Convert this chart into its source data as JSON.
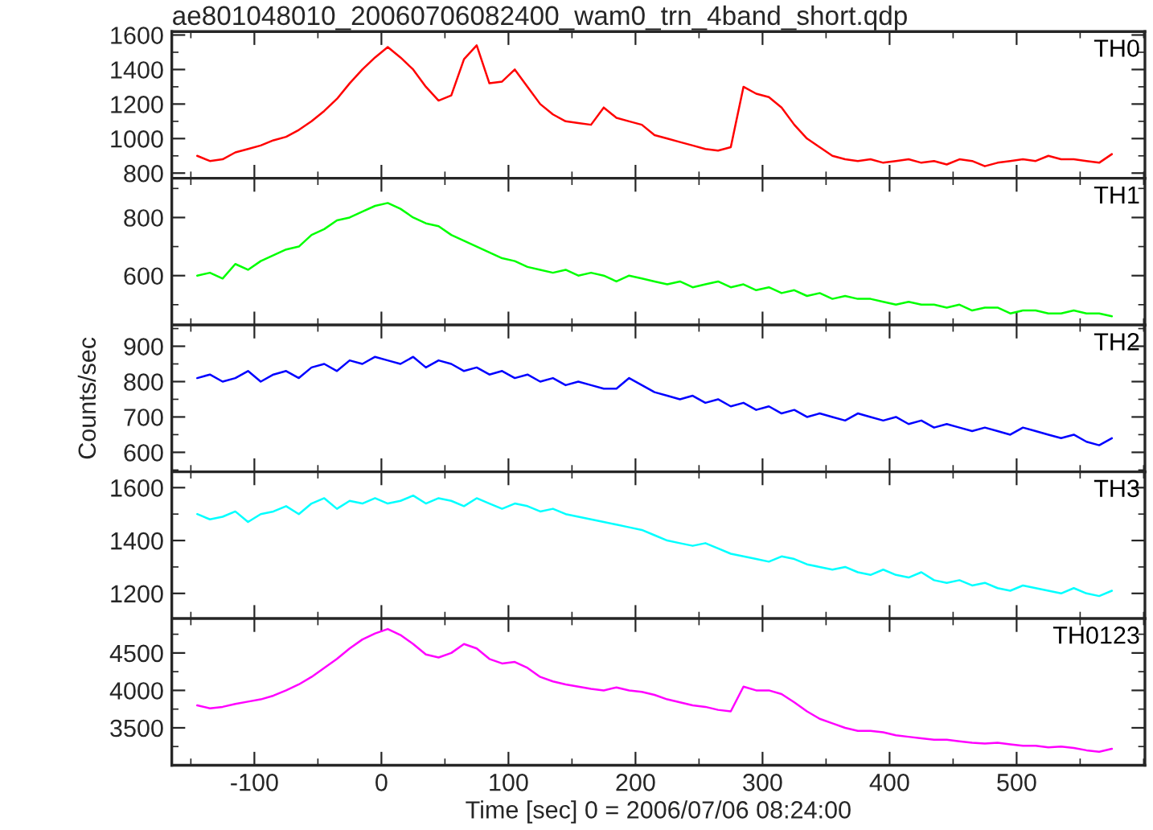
{
  "chart_data": [
    {
      "type": "line",
      "title": "ae801048010_20060706082400_wam0_trn_4band_short.qdp",
      "xlim": [
        -165,
        601
      ],
      "xticks": [
        -100,
        0,
        100,
        200,
        300,
        400,
        500
      ],
      "ylim": [
        770,
        1620
      ],
      "yticks": [
        800,
        1000,
        1200,
        1400,
        1600
      ],
      "tick_labels": "y",
      "grid": false,
      "legend": false,
      "series": [
        {
          "name": "TH0",
          "color": "#ff0000",
          "x": [
            -145,
            -135,
            -125,
            -115,
            -105,
            -95,
            -85,
            -75,
            -65,
            -55,
            -45,
            -35,
            -25,
            -15,
            -5,
            5,
            15,
            25,
            35,
            45,
            55,
            65,
            75,
            85,
            95,
            105,
            115,
            125,
            135,
            145,
            155,
            165,
            175,
            185,
            195,
            205,
            215,
            225,
            235,
            245,
            255,
            265,
            275,
            285,
            295,
            305,
            315,
            325,
            335,
            345,
            355,
            365,
            375,
            385,
            395,
            405,
            415,
            425,
            435,
            445,
            455,
            465,
            475,
            485,
            495,
            505,
            515,
            525,
            535,
            545,
            555,
            565,
            575
          ],
          "values": [
            900,
            870,
            880,
            920,
            940,
            960,
            990,
            1010,
            1050,
            1100,
            1160,
            1230,
            1320,
            1400,
            1470,
            1530,
            1470,
            1400,
            1300,
            1220,
            1250,
            1460,
            1540,
            1320,
            1330,
            1400,
            1300,
            1200,
            1140,
            1100,
            1090,
            1080,
            1180,
            1120,
            1100,
            1080,
            1020,
            1000,
            980,
            960,
            940,
            930,
            950,
            1300,
            1260,
            1240,
            1180,
            1080,
            1000,
            950,
            900,
            880,
            870,
            880,
            860,
            870,
            880,
            860,
            870,
            850,
            880,
            870,
            840,
            860,
            870,
            880,
            870,
            900,
            880,
            880,
            870,
            860,
            910
          ]
        }
      ]
    },
    {
      "type": "line",
      "xlim": [
        -165,
        601
      ],
      "xticks": [
        -100,
        0,
        100,
        200,
        300,
        400,
        500
      ],
      "ylim": [
        430,
        935
      ],
      "yticks": [
        600,
        800
      ],
      "tick_labels": "y",
      "grid": false,
      "legend": false,
      "series": [
        {
          "name": "TH1",
          "color": "#00ff00",
          "x": [
            -145,
            -135,
            -125,
            -115,
            -105,
            -95,
            -85,
            -75,
            -65,
            -55,
            -45,
            -35,
            -25,
            -15,
            -5,
            5,
            15,
            25,
            35,
            45,
            55,
            65,
            75,
            85,
            95,
            105,
            115,
            125,
            135,
            145,
            155,
            165,
            175,
            185,
            195,
            205,
            215,
            225,
            235,
            245,
            255,
            265,
            275,
            285,
            295,
            305,
            315,
            325,
            335,
            345,
            355,
            365,
            375,
            385,
            395,
            405,
            415,
            425,
            435,
            445,
            455,
            465,
            475,
            485,
            495,
            505,
            515,
            525,
            535,
            545,
            555,
            565,
            575
          ],
          "values": [
            600,
            610,
            590,
            640,
            620,
            650,
            670,
            690,
            700,
            740,
            760,
            790,
            800,
            820,
            840,
            850,
            830,
            800,
            780,
            770,
            740,
            720,
            700,
            680,
            660,
            650,
            630,
            620,
            610,
            620,
            600,
            610,
            600,
            580,
            600,
            590,
            580,
            570,
            580,
            560,
            570,
            580,
            560,
            570,
            550,
            560,
            540,
            550,
            530,
            540,
            520,
            530,
            520,
            520,
            510,
            500,
            510,
            500,
            500,
            490,
            500,
            480,
            490,
            490,
            470,
            480,
            480,
            470,
            470,
            480,
            470,
            470,
            460
          ]
        }
      ]
    },
    {
      "type": "line",
      "ylabel": "Counts/sec",
      "xlim": [
        -165,
        601
      ],
      "xticks": [
        -100,
        0,
        100,
        200,
        300,
        400,
        500
      ],
      "ylim": [
        545,
        960
      ],
      "yticks": [
        600,
        700,
        800,
        900
      ],
      "tick_labels": "y",
      "grid": false,
      "legend": false,
      "series": [
        {
          "name": "TH2",
          "color": "#0000ff",
          "x": [
            -145,
            -135,
            -125,
            -115,
            -105,
            -95,
            -85,
            -75,
            -65,
            -55,
            -45,
            -35,
            -25,
            -15,
            -5,
            5,
            15,
            25,
            35,
            45,
            55,
            65,
            75,
            85,
            95,
            105,
            115,
            125,
            135,
            145,
            155,
            165,
            175,
            185,
            195,
            205,
            215,
            225,
            235,
            245,
            255,
            265,
            275,
            285,
            295,
            305,
            315,
            325,
            335,
            345,
            355,
            365,
            375,
            385,
            395,
            405,
            415,
            425,
            435,
            445,
            455,
            465,
            475,
            485,
            495,
            505,
            515,
            525,
            535,
            545,
            555,
            565,
            575
          ],
          "values": [
            810,
            820,
            800,
            810,
            830,
            800,
            820,
            830,
            810,
            840,
            850,
            830,
            860,
            850,
            870,
            860,
            850,
            870,
            840,
            860,
            850,
            830,
            840,
            820,
            830,
            810,
            820,
            800,
            810,
            790,
            800,
            790,
            780,
            780,
            810,
            790,
            770,
            760,
            750,
            760,
            740,
            750,
            730,
            740,
            720,
            730,
            710,
            720,
            700,
            710,
            700,
            690,
            710,
            700,
            690,
            700,
            680,
            690,
            670,
            680,
            670,
            660,
            670,
            660,
            650,
            670,
            660,
            650,
            640,
            650,
            630,
            620,
            640
          ]
        }
      ]
    },
    {
      "type": "line",
      "xlim": [
        -165,
        601
      ],
      "xticks": [
        -100,
        0,
        100,
        200,
        300,
        400,
        500
      ],
      "ylim": [
        1105,
        1660
      ],
      "yticks": [
        1200,
        1400,
        1600
      ],
      "tick_labels": "y",
      "grid": false,
      "legend": false,
      "series": [
        {
          "name": "TH3",
          "color": "#00ffff",
          "x": [
            -145,
            -135,
            -125,
            -115,
            -105,
            -95,
            -85,
            -75,
            -65,
            -55,
            -45,
            -35,
            -25,
            -15,
            -5,
            5,
            15,
            25,
            35,
            45,
            55,
            65,
            75,
            85,
            95,
            105,
            115,
            125,
            135,
            145,
            155,
            165,
            175,
            185,
            195,
            205,
            215,
            225,
            235,
            245,
            255,
            265,
            275,
            285,
            295,
            305,
            315,
            325,
            335,
            345,
            355,
            365,
            375,
            385,
            395,
            405,
            415,
            425,
            435,
            445,
            455,
            465,
            475,
            485,
            495,
            505,
            515,
            525,
            535,
            545,
            555,
            565,
            575
          ],
          "values": [
            1500,
            1480,
            1490,
            1510,
            1470,
            1500,
            1510,
            1530,
            1500,
            1540,
            1560,
            1520,
            1550,
            1540,
            1560,
            1540,
            1550,
            1570,
            1540,
            1560,
            1550,
            1530,
            1560,
            1540,
            1520,
            1540,
            1530,
            1510,
            1520,
            1500,
            1490,
            1480,
            1470,
            1460,
            1450,
            1440,
            1420,
            1400,
            1390,
            1380,
            1390,
            1370,
            1350,
            1340,
            1330,
            1320,
            1340,
            1330,
            1310,
            1300,
            1290,
            1300,
            1280,
            1270,
            1290,
            1270,
            1260,
            1280,
            1250,
            1240,
            1250,
            1230,
            1240,
            1220,
            1210,
            1230,
            1220,
            1210,
            1200,
            1220,
            1200,
            1190,
            1210
          ]
        }
      ]
    },
    {
      "type": "line",
      "xlabel": "Time [sec] 0 = 2006/07/06 08:24:00",
      "xlim": [
        -165,
        601
      ],
      "xticks": [
        -100,
        0,
        100,
        200,
        300,
        400,
        500
      ],
      "ylim": [
        3000,
        4960
      ],
      "yticks": [
        3500,
        4000,
        4500
      ],
      "grid": false,
      "legend": false,
      "series": [
        {
          "name": "TH0123",
          "color": "#ff00ff",
          "x": [
            -145,
            -135,
            -125,
            -115,
            -105,
            -95,
            -85,
            -75,
            -65,
            -55,
            -45,
            -35,
            -25,
            -15,
            -5,
            5,
            15,
            25,
            35,
            45,
            55,
            65,
            75,
            85,
            95,
            105,
            115,
            125,
            135,
            145,
            155,
            165,
            175,
            185,
            195,
            205,
            215,
            225,
            235,
            245,
            255,
            265,
            275,
            285,
            295,
            305,
            315,
            325,
            335,
            345,
            355,
            365,
            375,
            385,
            395,
            405,
            415,
            425,
            435,
            445,
            455,
            465,
            475,
            485,
            495,
            505,
            515,
            525,
            535,
            545,
            555,
            565,
            575
          ],
          "values": [
            3800,
            3760,
            3780,
            3820,
            3850,
            3880,
            3930,
            4000,
            4080,
            4180,
            4300,
            4420,
            4560,
            4680,
            4760,
            4820,
            4740,
            4620,
            4480,
            4440,
            4500,
            4620,
            4560,
            4420,
            4360,
            4380,
            4300,
            4180,
            4120,
            4080,
            4050,
            4020,
            4000,
            4040,
            4000,
            3980,
            3940,
            3880,
            3840,
            3800,
            3780,
            3740,
            3720,
            4050,
            4000,
            4000,
            3950,
            3840,
            3720,
            3620,
            3560,
            3500,
            3460,
            3460,
            3440,
            3400,
            3380,
            3360,
            3340,
            3340,
            3320,
            3300,
            3290,
            3300,
            3280,
            3260,
            3260,
            3240,
            3250,
            3230,
            3200,
            3180,
            3220
          ]
        }
      ]
    }
  ]
}
